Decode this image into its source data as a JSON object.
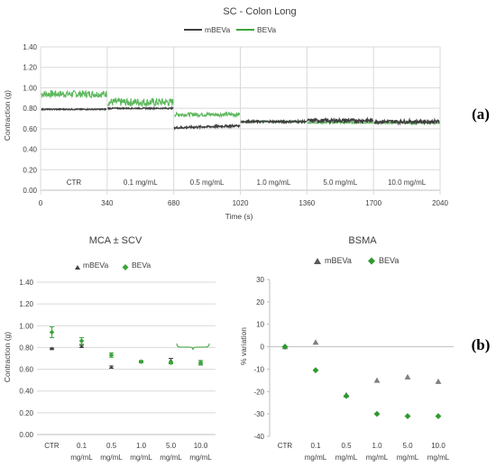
{
  "colors": {
    "mBEVa": "#404040",
    "BEVa": "#3aa63a",
    "BEVa_trace": "#5cb85c",
    "grid": "#d9d9d9",
    "axis": "#bfbfbf",
    "text": "#404040"
  },
  "panel_labels": [
    "(a)",
    "(b)"
  ],
  "chart_data": [
    {
      "type": "line",
      "title": "SC - Colon Long",
      "xlabel": "Time (s)",
      "ylabel": "Contraction (g)",
      "xlim": [
        0,
        2040
      ],
      "ylim": [
        0,
        1.4
      ],
      "x_ticks": [
        "0",
        "340",
        "680",
        "1020",
        "1360",
        "1700",
        "2040"
      ],
      "y_ticks": [
        "0.00",
        "0.20",
        "0.40",
        "0.60",
        "0.80",
        "1.00",
        "1.20",
        "1.40"
      ],
      "grid": true,
      "legend_position": "top-center",
      "segments": [
        "CTR",
        "0.1 mg/mL",
        "0.5 mg/mL",
        "1.0 mg/mL",
        "5.0 mg/mL",
        "10.0 mg/mL"
      ],
      "series": [
        {
          "name": "mBEVa",
          "segment_means": [
            0.79,
            0.8,
            0.62,
            0.67,
            0.68,
            0.67
          ],
          "segment_noise": [
            0.005,
            0.006,
            0.01,
            0.01,
            0.018,
            0.018
          ]
        },
        {
          "name": "BEVa",
          "segment_means": [
            0.94,
            0.86,
            0.74,
            0.67,
            0.66,
            0.66
          ],
          "segment_noise": [
            0.035,
            0.04,
            0.02,
            0.01,
            0.008,
            0.01
          ]
        }
      ]
    },
    {
      "type": "scatter",
      "title": "MCA ± SCV",
      "xlabel": "",
      "ylabel": "Contraction (g)",
      "ylim": [
        0,
        1.4
      ],
      "y_ticks": [
        "0.00",
        "0.20",
        "0.40",
        "0.60",
        "0.80",
        "1.00",
        "1.20",
        "1.40"
      ],
      "categories": [
        "CTR",
        "0.1",
        "0.5",
        "1.0",
        "5.0",
        "10.0"
      ],
      "category_unit": "mg/mL",
      "grid": true,
      "legend_position": "top-center",
      "series": [
        {
          "name": "mBEVa",
          "marker": "triangle",
          "values": [
            0.79,
            0.81,
            0.62,
            0.67,
            0.68,
            0.66
          ],
          "errors": [
            0.005,
            0.01,
            0.01,
            0.005,
            0.02,
            0.02
          ]
        },
        {
          "name": "BEVa",
          "marker": "diamond",
          "values": [
            0.94,
            0.86,
            0.73,
            0.67,
            0.66,
            0.66
          ],
          "errors": [
            0.05,
            0.03,
            0.02,
            0.01,
            0.01,
            0.02
          ]
        }
      ]
    },
    {
      "type": "scatter",
      "title": "BSMA",
      "xlabel": "",
      "ylabel": "% variation",
      "ylim": [
        -40,
        30
      ],
      "y_ticks": [
        "30",
        "20",
        "10",
        "0",
        "-10",
        "-20",
        "-30",
        "-40"
      ],
      "categories": [
        "CTR",
        "0.1",
        "0.5",
        "1.0",
        "5.0",
        "10.0"
      ],
      "category_unit": "mg/mL",
      "grid": false,
      "legend_position": "top-center",
      "series": [
        {
          "name": "mBEVa",
          "marker": "triangle",
          "values": [
            0,
            2,
            -21.5,
            -15,
            -13.5,
            -15.5
          ]
        },
        {
          "name": "BEVa",
          "marker": "diamond",
          "values": [
            0,
            -10.5,
            -22,
            -30,
            -31,
            -31
          ]
        }
      ]
    }
  ]
}
